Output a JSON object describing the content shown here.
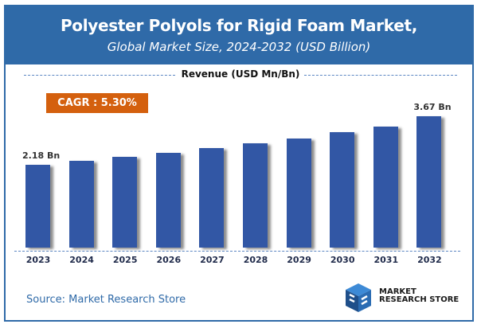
{
  "header": {
    "title": "Polyester Polyols for Rigid Foam Market,",
    "subtitle": "Global Market Size, 2024-2032 (USD Billion)"
  },
  "legend": "Revenue (USD Mn/Bn)",
  "cagr_label": "CAGR : 5.30%",
  "source": "Source: Market Research Store",
  "logo": {
    "line1": "MARKET",
    "line2": "RESEARCH STORE"
  },
  "colors": {
    "header": "#2f6aa8",
    "bar": "#3257a5",
    "cagr": "#d4600e",
    "source": "#2f6aa8"
  },
  "chart_data": {
    "type": "bar",
    "title": "Polyester Polyols for Rigid Foam Market, Global Market Size, 2024-2032 (USD Billion)",
    "xlabel": "",
    "ylabel": "Revenue (USD Mn/Bn)",
    "categories": [
      "2023",
      "2024",
      "2025",
      "2026",
      "2027",
      "2028",
      "2029",
      "2030",
      "2031",
      "2032"
    ],
    "values": [
      2.18,
      2.3,
      2.42,
      2.55,
      2.7,
      2.84,
      2.99,
      3.17,
      3.35,
      3.67
    ],
    "data_labels": [
      {
        "category": "2023",
        "label": "2.18 Bn"
      },
      {
        "category": "2032",
        "label": "3.67 Bn"
      }
    ],
    "annotations": [
      "CAGR : 5.30%"
    ],
    "grid": false,
    "legend_position": "top"
  }
}
